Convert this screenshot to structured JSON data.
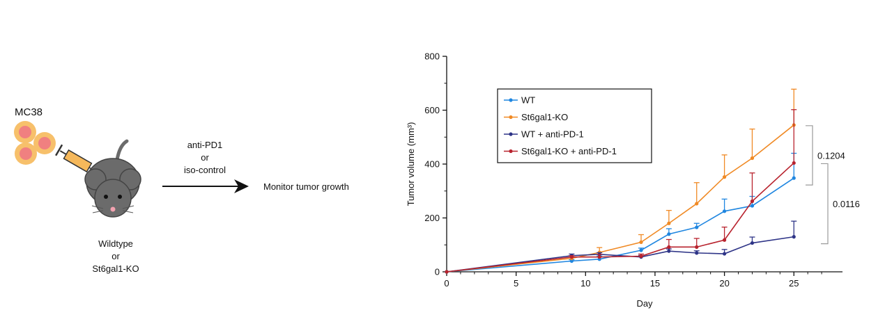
{
  "schematic": {
    "cell_line_label": "MC38",
    "genotype_lines": [
      "Wildtype",
      "or",
      "St6gal1-KO"
    ],
    "treatment_lines": [
      "anti-PD1",
      "or",
      "iso-control"
    ],
    "readout_label": "Monitor tumor growth",
    "icons": [
      "tumor-cells-icon",
      "syringe-icon",
      "mouse-icon",
      "arrow-right-icon"
    ]
  },
  "chart_data": {
    "type": "line",
    "title": "",
    "xlabel": "Day",
    "ylabel": "Tumor volume (mm³)",
    "xlim": [
      0,
      28.5
    ],
    "ylim": [
      0,
      800
    ],
    "xticks": [
      0,
      5,
      10,
      15,
      20,
      25
    ],
    "yticks": [
      0,
      200,
      400,
      600,
      800
    ],
    "grid": false,
    "legend_position": "top-left",
    "x": [
      0,
      9,
      11,
      14,
      16,
      18,
      20,
      22,
      25
    ],
    "series": [
      {
        "name": "WT",
        "color": "#1f86e0",
        "values": [
          0,
          40,
          47,
          80,
          140,
          165,
          225,
          245,
          348
        ],
        "errors": [
          0,
          5,
          12,
          8,
          20,
          15,
          45,
          35,
          92
        ]
      },
      {
        "name": "St6gal1-KO",
        "color": "#f08a25",
        "values": [
          0,
          50,
          72,
          110,
          180,
          253,
          352,
          422,
          545
        ],
        "errors": [
          0,
          10,
          18,
          28,
          48,
          78,
          82,
          108,
          133
        ]
      },
      {
        "name": "WT + anti-PD-1",
        "color": "#2e3487",
        "values": [
          0,
          60,
          65,
          55,
          77,
          70,
          67,
          107,
          130
        ],
        "errors": [
          0,
          6,
          6,
          6,
          8,
          8,
          16,
          22,
          58
        ]
      },
      {
        "name": "St6gal1-KO + anti-PD-1",
        "color": "#b8232e",
        "values": [
          0,
          55,
          55,
          58,
          92,
          92,
          118,
          262,
          404
        ],
        "errors": [
          0,
          5,
          10,
          8,
          28,
          32,
          48,
          105,
          198
        ]
      }
    ],
    "annotations": [
      {
        "label": "0.1204",
        "compares": [
          "St6gal1-KO",
          "WT"
        ]
      },
      {
        "label": "0.0116",
        "compares": [
          "St6gal1-KO + anti-PD-1",
          "WT + anti-PD-1"
        ]
      }
    ]
  }
}
